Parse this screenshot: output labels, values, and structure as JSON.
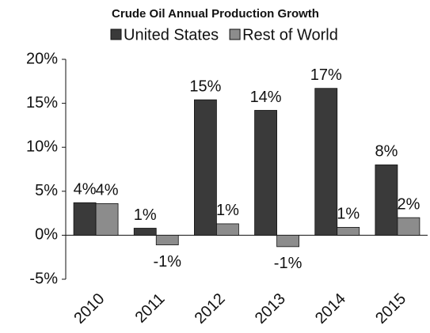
{
  "chart_data": {
    "type": "bar",
    "title": "Crude Oil Annual Production Growth",
    "categories": [
      "2010",
      "2011",
      "2012",
      "2013",
      "2014",
      "2015"
    ],
    "series": [
      {
        "name": "United States",
        "color": "#3a3a3a",
        "values": [
          3.7,
          0.8,
          15.4,
          14.2,
          16.7,
          8.0
        ],
        "value_labels": [
          "4%",
          "1%",
          "15%",
          "14%",
          "17%",
          "8%"
        ]
      },
      {
        "name": "Rest of World",
        "color": "#8c8c8c",
        "values": [
          3.6,
          -1.1,
          1.3,
          -1.3,
          0.9,
          2.0
        ],
        "value_labels": [
          "4%",
          "-1%",
          "1%",
          "-1%",
          "1%",
          "2%"
        ]
      }
    ],
    "ylim": [
      -5,
      20
    ],
    "yticks": [
      {
        "value": -5,
        "label": "-5%"
      },
      {
        "value": 0,
        "label": "0%"
      },
      {
        "value": 5,
        "label": "5%"
      },
      {
        "value": 10,
        "label": "10%"
      },
      {
        "value": 15,
        "label": "15%"
      },
      {
        "value": 20,
        "label": "20%"
      }
    ],
    "legend": "top"
  }
}
